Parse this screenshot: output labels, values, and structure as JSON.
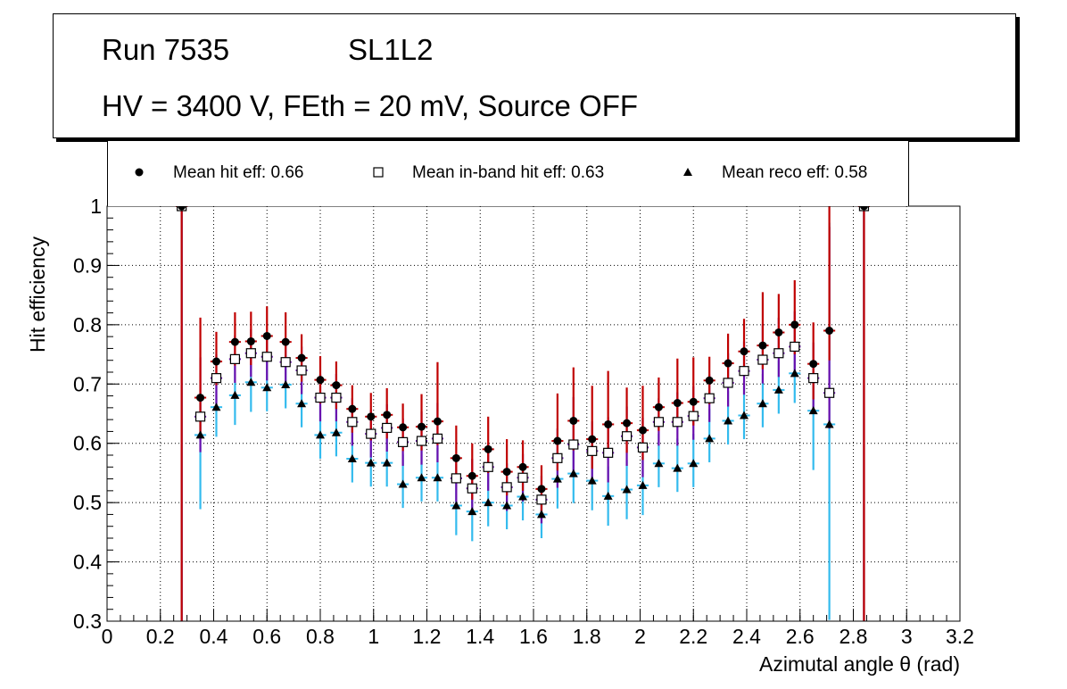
{
  "header": {
    "run_label": "Run 7535",
    "layer": "SL1L2",
    "conditions": "HV = 3400 V, FEth = 20 mV, Source OFF"
  },
  "legend": {
    "hit": "Mean hit  eff: 0.66",
    "inband": "Mean in-band hit eff: 0.63",
    "reco": "Mean reco eff: 0.58"
  },
  "colors": {
    "hit_error": "#c00000",
    "inband_error": "#6a0dad",
    "reco_error": "#33bbee",
    "marker": "#000000",
    "grid": "#000000"
  },
  "chart_data": {
    "type": "scatter",
    "xlabel": "Azimutal angle θ (rad)",
    "ylabel": "Hit efficiency",
    "xlim": [
      0,
      3.2
    ],
    "ylim": [
      0.3,
      1.0
    ],
    "xticks": [
      0,
      0.2,
      0.4,
      0.6,
      0.8,
      1,
      1.2,
      1.4,
      1.6,
      1.8,
      2,
      2.2,
      2.4,
      2.6,
      2.8,
      3,
      3.2
    ],
    "yticks": [
      0.3,
      0.4,
      0.5,
      0.6,
      0.7,
      0.8,
      0.9,
      1
    ],
    "grid": true,
    "bin_half_width": 0.022,
    "x": [
      0.28,
      0.35,
      0.41,
      0.48,
      0.54,
      0.6,
      0.67,
      0.73,
      0.8,
      0.86,
      0.92,
      0.99,
      1.05,
      1.11,
      1.18,
      1.24,
      1.31,
      1.37,
      1.43,
      1.5,
      1.56,
      1.63,
      1.69,
      1.75,
      1.82,
      1.88,
      1.95,
      2.01,
      2.07,
      2.14,
      2.2,
      2.26,
      2.33,
      2.39,
      2.46,
      2.52,
      2.58,
      2.65,
      2.71,
      2.84
    ],
    "series": [
      {
        "name": "Mean hit eff",
        "values": [
          1.0,
          0.677,
          0.738,
          0.771,
          0.772,
          0.781,
          0.771,
          0.744,
          0.707,
          0.698,
          0.658,
          0.645,
          0.648,
          0.627,
          0.628,
          0.637,
          0.575,
          0.545,
          0.59,
          0.552,
          0.56,
          0.523,
          0.604,
          0.638,
          0.607,
          0.632,
          0.634,
          0.622,
          0.661,
          0.668,
          0.67,
          0.706,
          0.735,
          0.755,
          0.765,
          0.787,
          0.8,
          0.734,
          0.79,
          1.0
        ],
        "err_low": [
          0.7,
          0.06,
          0.04,
          0.04,
          0.04,
          0.04,
          0.04,
          0.04,
          0.04,
          0.04,
          0.04,
          0.04,
          0.04,
          0.04,
          0.04,
          0.04,
          0.04,
          0.04,
          0.04,
          0.04,
          0.04,
          0.04,
          0.05,
          0.05,
          0.05,
          0.05,
          0.05,
          0.05,
          0.04,
          0.04,
          0.04,
          0.04,
          0.04,
          0.04,
          0.04,
          0.04,
          0.05,
          0.06,
          0.05,
          0.7
        ],
        "err_high": [
          0.0,
          0.135,
          0.05,
          0.05,
          0.05,
          0.05,
          0.05,
          0.04,
          0.04,
          0.04,
          0.04,
          0.04,
          0.045,
          0.04,
          0.055,
          0.1,
          0.055,
          0.055,
          0.055,
          0.055,
          0.045,
          0.04,
          0.08,
          0.09,
          0.09,
          0.09,
          0.06,
          0.075,
          0.05,
          0.075,
          0.075,
          0.04,
          0.05,
          0.055,
          0.09,
          0.065,
          0.075,
          0.07,
          0.23,
          0.0
        ]
      },
      {
        "name": "Mean in-band hit eff",
        "values": [
          1.0,
          0.645,
          0.71,
          0.742,
          0.752,
          0.746,
          0.737,
          0.723,
          0.677,
          0.677,
          0.636,
          0.616,
          0.626,
          0.602,
          0.604,
          0.608,
          0.541,
          0.524,
          0.56,
          0.526,
          0.542,
          0.505,
          0.575,
          0.598,
          0.587,
          0.584,
          0.612,
          0.593,
          0.636,
          0.636,
          0.646,
          0.676,
          0.702,
          0.722,
          0.741,
          0.752,
          0.763,
          0.71,
          0.685,
          1.0
        ],
        "err_low": [
          0.7,
          0.06,
          0.05,
          0.04,
          0.04,
          0.04,
          0.04,
          0.04,
          0.04,
          0.04,
          0.04,
          0.04,
          0.04,
          0.04,
          0.04,
          0.04,
          0.04,
          0.04,
          0.04,
          0.04,
          0.04,
          0.04,
          0.05,
          0.05,
          0.05,
          0.05,
          0.05,
          0.05,
          0.04,
          0.04,
          0.04,
          0.04,
          0.04,
          0.04,
          0.04,
          0.04,
          0.05,
          0.05,
          0.06,
          0.7
        ],
        "err_high": [
          0.0,
          0.1,
          0.04,
          0.04,
          0.04,
          0.04,
          0.04,
          0.04,
          0.04,
          0.04,
          0.04,
          0.04,
          0.04,
          0.04,
          0.05,
          0.06,
          0.04,
          0.05,
          0.04,
          0.04,
          0.04,
          0.04,
          0.05,
          0.08,
          0.05,
          0.06,
          0.05,
          0.05,
          0.04,
          0.05,
          0.05,
          0.04,
          0.05,
          0.05,
          0.06,
          0.06,
          0.06,
          0.06,
          0.28,
          0.0
        ]
      },
      {
        "name": "Mean reco eff",
        "values": [
          1.0,
          0.614,
          0.661,
          0.681,
          0.703,
          0.694,
          0.699,
          0.667,
          0.614,
          0.618,
          0.574,
          0.567,
          0.567,
          0.531,
          0.542,
          0.542,
          0.495,
          0.485,
          0.5,
          0.495,
          0.51,
          0.48,
          0.54,
          0.549,
          0.537,
          0.511,
          0.522,
          0.529,
          0.566,
          0.558,
          0.566,
          0.608,
          0.638,
          0.647,
          0.667,
          0.69,
          0.718,
          0.655,
          0.632,
          1.0
        ],
        "err_low": [
          0.7,
          0.125,
          0.05,
          0.05,
          0.05,
          0.04,
          0.04,
          0.04,
          0.04,
          0.04,
          0.04,
          0.04,
          0.04,
          0.04,
          0.04,
          0.04,
          0.05,
          0.05,
          0.04,
          0.04,
          0.04,
          0.04,
          0.05,
          0.05,
          0.05,
          0.05,
          0.05,
          0.05,
          0.04,
          0.04,
          0.04,
          0.04,
          0.04,
          0.04,
          0.04,
          0.04,
          0.05,
          0.1,
          0.33,
          0.7
        ],
        "err_high": [
          0.0,
          0.06,
          0.05,
          0.05,
          0.05,
          0.05,
          0.05,
          0.05,
          0.05,
          0.05,
          0.05,
          0.05,
          0.05,
          0.05,
          0.05,
          0.05,
          0.05,
          0.05,
          0.05,
          0.05,
          0.05,
          0.05,
          0.05,
          0.05,
          0.05,
          0.05,
          0.05,
          0.05,
          0.05,
          0.05,
          0.05,
          0.05,
          0.05,
          0.05,
          0.05,
          0.05,
          0.05,
          0.05,
          0.34,
          0.0
        ]
      }
    ]
  }
}
